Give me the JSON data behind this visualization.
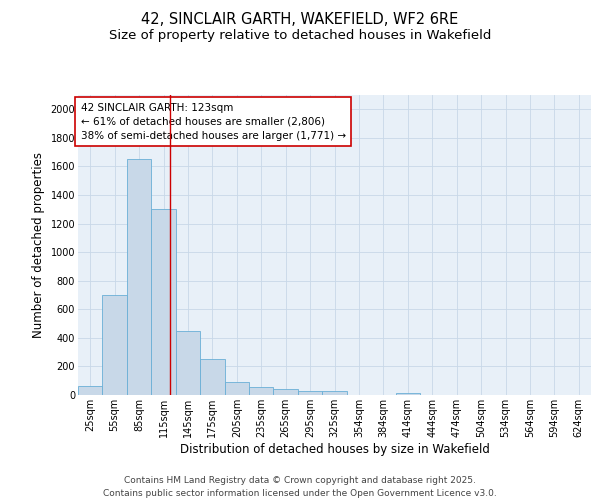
{
  "title_line1": "42, SINCLAIR GARTH, WAKEFIELD, WF2 6RE",
  "title_line2": "Size of property relative to detached houses in Wakefield",
  "xlabel": "Distribution of detached houses by size in Wakefield",
  "ylabel": "Number of detached properties",
  "categories": [
    "25sqm",
    "55sqm",
    "85sqm",
    "115sqm",
    "145sqm",
    "175sqm",
    "205sqm",
    "235sqm",
    "265sqm",
    "295sqm",
    "325sqm",
    "354sqm",
    "384sqm",
    "414sqm",
    "444sqm",
    "474sqm",
    "504sqm",
    "534sqm",
    "564sqm",
    "594sqm",
    "624sqm"
  ],
  "values": [
    65,
    700,
    1650,
    1300,
    450,
    250,
    90,
    55,
    40,
    30,
    25,
    0,
    0,
    15,
    0,
    0,
    0,
    0,
    0,
    0,
    0
  ],
  "bar_color": "#c8d8e8",
  "bar_edge_color": "#6aafd6",
  "red_line_x": 3.27,
  "annotation_line1": "42 SINCLAIR GARTH: 123sqm",
  "annotation_line2": "← 61% of detached houses are smaller (2,806)",
  "annotation_line3": "38% of semi-detached houses are larger (1,771) →",
  "annotation_box_color": "#ffffff",
  "annotation_box_edge_color": "#cc0000",
  "ylim": [
    0,
    2100
  ],
  "yticks": [
    0,
    200,
    400,
    600,
    800,
    1000,
    1200,
    1400,
    1600,
    1800,
    2000
  ],
  "grid_color": "#c8d8e8",
  "plot_bg_color": "#e8f0f8",
  "footer_line1": "Contains HM Land Registry data © Crown copyright and database right 2025.",
  "footer_line2": "Contains public sector information licensed under the Open Government Licence v3.0.",
  "title_fontsize": 10.5,
  "subtitle_fontsize": 9.5,
  "ylabel_fontsize": 8.5,
  "xlabel_fontsize": 8.5,
  "tick_fontsize": 7,
  "ann_fontsize": 7.5,
  "footer_fontsize": 6.5
}
